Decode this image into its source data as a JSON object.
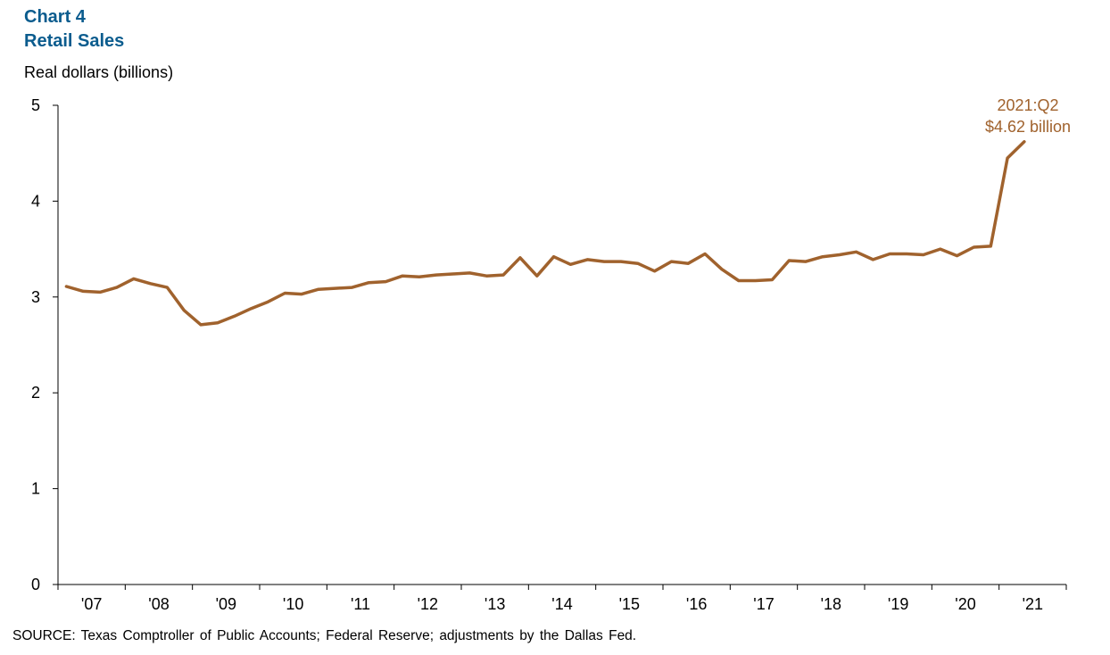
{
  "header": {
    "title_line1": "Chart 4",
    "title_line2": "Retail Sales"
  },
  "footer": {
    "source": "SOURCE: Texas Comptroller of Public Accounts; Federal Reserve; adjustments by the Dallas Fed."
  },
  "colors": {
    "line": "#a0622d",
    "title": "#0b5c8e"
  },
  "chart_data": {
    "type": "line",
    "title": "Retail Sales",
    "ylabel": "Real dollars (billions)",
    "xlabel": "",
    "ylim": [
      0,
      5
    ],
    "yticks": [
      0,
      1,
      2,
      3,
      4,
      5
    ],
    "x_tick_labels": [
      "'07",
      "'08",
      "'09",
      "'10",
      "'11",
      "'12",
      "'13",
      "'14",
      "'15",
      "'16",
      "'17",
      "'18",
      "'19",
      "'20",
      "'21"
    ],
    "grid": false,
    "x": [
      "2007:Q1",
      "2007:Q2",
      "2007:Q3",
      "2007:Q4",
      "2008:Q1",
      "2008:Q2",
      "2008:Q3",
      "2008:Q4",
      "2009:Q1",
      "2009:Q2",
      "2009:Q3",
      "2009:Q4",
      "2010:Q1",
      "2010:Q2",
      "2010:Q3",
      "2010:Q4",
      "2011:Q1",
      "2011:Q2",
      "2011:Q3",
      "2011:Q4",
      "2012:Q1",
      "2012:Q2",
      "2012:Q3",
      "2012:Q4",
      "2013:Q1",
      "2013:Q2",
      "2013:Q3",
      "2013:Q4",
      "2014:Q1",
      "2014:Q2",
      "2014:Q3",
      "2014:Q4",
      "2015:Q1",
      "2015:Q2",
      "2015:Q3",
      "2015:Q4",
      "2016:Q1",
      "2016:Q2",
      "2016:Q3",
      "2016:Q4",
      "2017:Q1",
      "2017:Q2",
      "2017:Q3",
      "2017:Q4",
      "2018:Q1",
      "2018:Q2",
      "2018:Q3",
      "2018:Q4",
      "2019:Q1",
      "2019:Q2",
      "2019:Q3",
      "2019:Q4",
      "2020:Q1",
      "2020:Q2",
      "2020:Q3",
      "2020:Q4",
      "2021:Q1",
      "2021:Q2"
    ],
    "series": [
      {
        "values": [
          3.11,
          3.06,
          3.05,
          3.1,
          3.19,
          3.14,
          3.1,
          2.86,
          2.71,
          2.73,
          2.8,
          2.88,
          2.95,
          3.04,
          3.03,
          3.08,
          3.09,
          3.1,
          3.15,
          3.16,
          3.22,
          3.21,
          3.23,
          3.24,
          3.25,
          3.22,
          3.23,
          3.41,
          3.22,
          3.42,
          3.34,
          3.39,
          3.37,
          3.37,
          3.35,
          3.27,
          3.37,
          3.35,
          3.45,
          3.29,
          3.17,
          3.17,
          3.18,
          3.38,
          3.37,
          3.42,
          3.44,
          3.47,
          3.39,
          3.45,
          3.45,
          3.44,
          3.5,
          3.43,
          3.52,
          3.53,
          4.45,
          4.62
        ]
      }
    ],
    "annotation": {
      "line1": "2021:Q2",
      "line2": "$4.62 billion"
    }
  }
}
